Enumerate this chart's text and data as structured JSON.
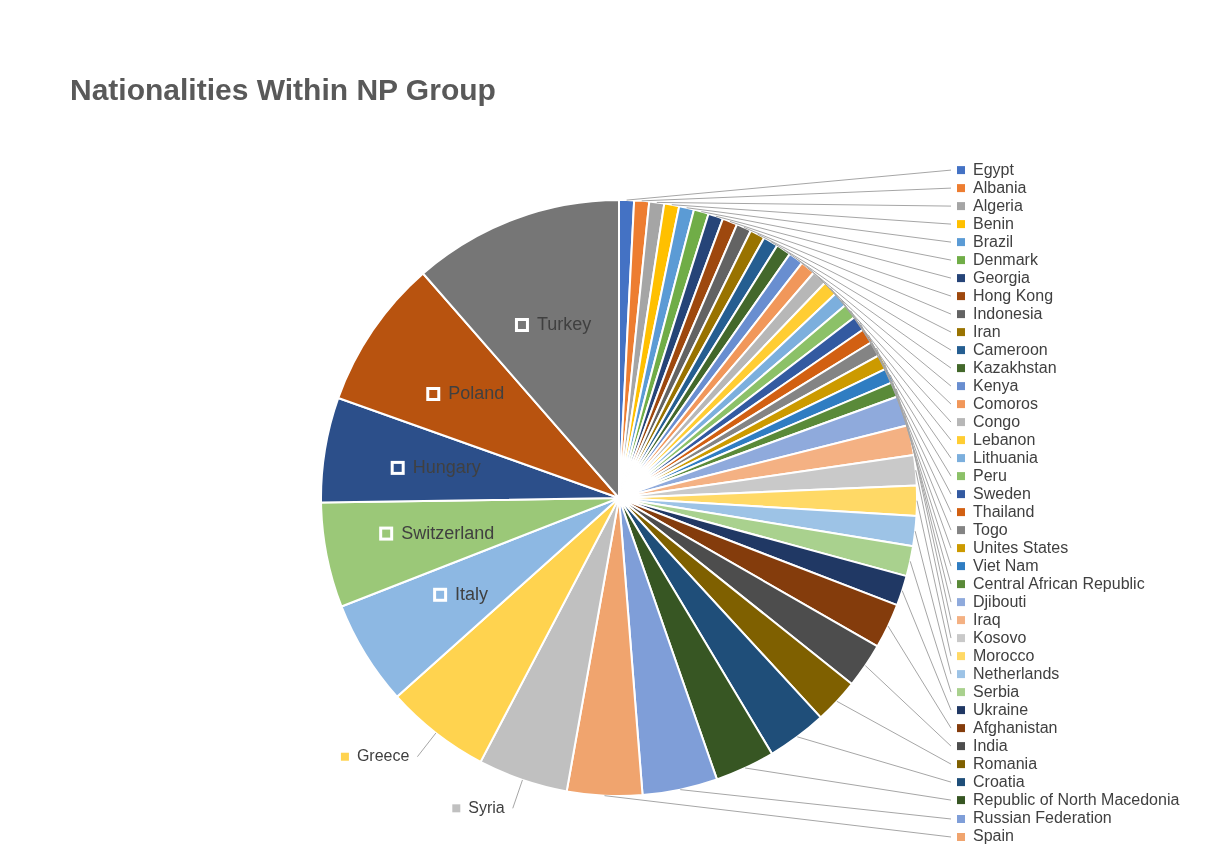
{
  "chart_data": {
    "type": "pie",
    "title": "Nationalities Within NP Group",
    "categories": [
      "Egypt",
      "Albania",
      "Algeria",
      "Benin",
      "Brazil",
      "Denmark",
      "Georgia",
      "Hong Kong",
      "Indonesia",
      "Iran",
      "Cameroon",
      "Kazakhstan",
      "Kenya",
      "Comoros",
      "Congo",
      "Lebanon",
      "Lithuania",
      "Peru",
      "Sweden",
      "Thailand",
      "Togo",
      "Unites States",
      "Viet Nam",
      "Central African Republic",
      "Djibouti",
      "Iraq",
      "Kosovo",
      "Morocco",
      "Netherlands",
      "Serbia",
      "Ukraine",
      "Afghanistan",
      "India",
      "Romania",
      "Croatia",
      "Republic of North Macedonia",
      "Russian Federation",
      "Spain",
      "Syria",
      "Greece",
      "Italy",
      "Switzerland",
      "Hungary",
      "Poland",
      "Turkey"
    ],
    "values": [
      0.81,
      0.81,
      0.81,
      0.81,
      0.81,
      0.81,
      0.81,
      0.81,
      0.81,
      0.81,
      0.81,
      0.81,
      0.81,
      0.81,
      0.81,
      0.81,
      0.81,
      0.81,
      0.81,
      0.81,
      0.81,
      0.81,
      0.81,
      0.81,
      1.63,
      1.63,
      1.63,
      1.63,
      1.63,
      1.63,
      1.63,
      2.44,
      2.44,
      2.44,
      3.25,
      3.25,
      4.07,
      4.07,
      4.88,
      5.69,
      5.69,
      5.69,
      5.69,
      8.13,
      11.42
    ],
    "colors": [
      "#4472c4",
      "#ed7d31",
      "#a5a5a5",
      "#ffc000",
      "#5b9bd5",
      "#70ad47",
      "#264478",
      "#9e480e",
      "#636363",
      "#997300",
      "#255e91",
      "#43682b",
      "#698ed0",
      "#f1975a",
      "#b7b7b7",
      "#ffcd33",
      "#7cafdd",
      "#8cc168",
      "#335aa1",
      "#d26012",
      "#848484",
      "#cc9a00",
      "#2f7dc2",
      "#5a8a39",
      "#8faadc",
      "#f4b183",
      "#c9c9c9",
      "#ffd966",
      "#9dc3e6",
      "#a9d18e",
      "#203864",
      "#843c0c",
      "#4d4d4d",
      "#7f6000",
      "#1f4e79",
      "#375623",
      "#7f9ed8",
      "#f0a46e",
      "#c0c0c0",
      "#ffd34f",
      "#8db8e3",
      "#9bc878",
      "#2c4f8a",
      "#b8530f",
      "#767676"
    ],
    "legend": "right"
  }
}
